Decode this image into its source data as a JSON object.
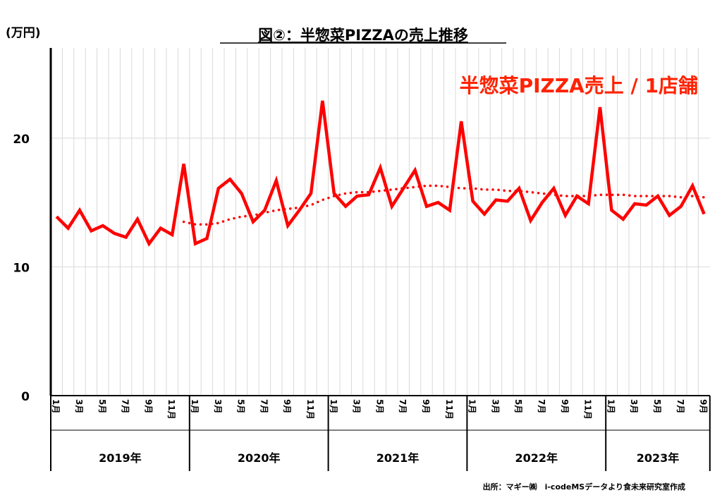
{
  "chart_data": {
    "type": "line",
    "title": "図②：半惣菜PIZZAの売上推移",
    "ylabel": "(万円)",
    "ylim": [
      0,
      27
    ],
    "yticks": [
      0,
      10,
      20
    ],
    "grid": true,
    "legend_placement": "top-right",
    "annotation": "半惣菜PIZZA売上 / 1店舗",
    "source": "出所：マギー㈱　i-codeMSデータより食未来研究室作成",
    "years": [
      "2019年",
      "2020年",
      "2021年",
      "2022年",
      "2023年"
    ],
    "month_labels": [
      "1月",
      "",
      "3月",
      "",
      "5月",
      "",
      "7月",
      "",
      "9月",
      "",
      "11月",
      ""
    ],
    "series": [
      {
        "name": "半惣菜PIZZA売上 / 1店舗",
        "color": "#ff0000",
        "style": "solid",
        "values": [
          13.9,
          13.0,
          14.4,
          12.8,
          13.2,
          12.6,
          12.3,
          13.7,
          11.8,
          13.0,
          12.5,
          18.0,
          11.8,
          12.2,
          16.1,
          16.8,
          15.7,
          13.5,
          14.4,
          16.7,
          13.2,
          14.4,
          15.7,
          22.9,
          15.7,
          14.7,
          15.5,
          15.6,
          17.7,
          14.7,
          16.1,
          17.5,
          14.7,
          15.0,
          14.4,
          21.3,
          15.1,
          14.1,
          15.2,
          15.1,
          16.1,
          13.6,
          15.0,
          16.1,
          14.0,
          15.5,
          14.9,
          22.4,
          14.4,
          13.7,
          14.9,
          14.8,
          15.5,
          14.0,
          14.7,
          16.3,
          14.1
        ]
      },
      {
        "color": "#ff0000",
        "style": "dotted",
        "start_index": 11,
        "values": [
          13.5,
          13.3,
          13.3,
          13.4,
          13.7,
          13.9,
          14.0,
          14.2,
          14.4,
          14.5,
          14.6,
          14.8,
          15.2,
          15.5,
          15.7,
          15.8,
          15.8,
          15.9,
          16.0,
          16.1,
          16.2,
          16.3,
          16.3,
          16.2,
          16.1,
          16.1,
          16.0,
          16.0,
          15.9,
          15.9,
          15.8,
          15.7,
          15.6,
          15.5,
          15.5,
          15.5,
          15.6,
          15.6,
          15.6,
          15.5,
          15.5,
          15.5,
          15.5,
          15.4,
          15.5,
          15.4
        ]
      }
    ]
  }
}
